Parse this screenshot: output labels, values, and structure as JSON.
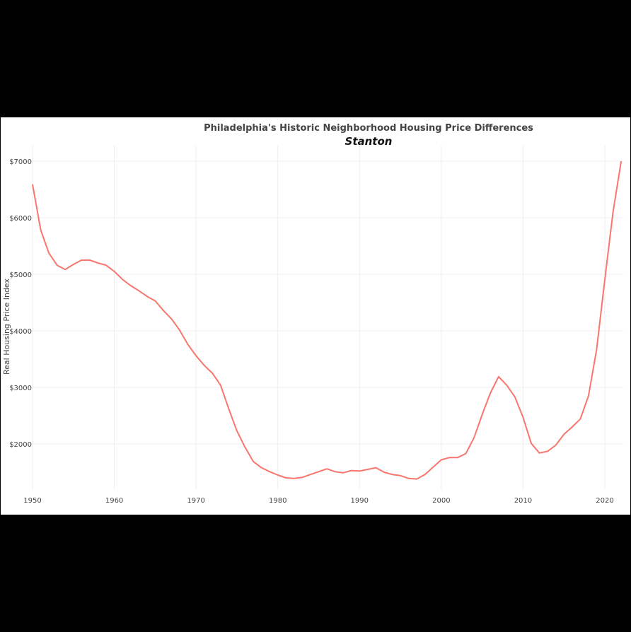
{
  "chart_data": {
    "type": "line",
    "title": "Philadelphia's Historic Neighborhood Housing Price Differences",
    "subtitle": "Stanton",
    "xlabel": "",
    "ylabel": "Real Housing Price Index",
    "x_ticks": [
      1950,
      1960,
      1970,
      1980,
      1990,
      2000,
      2010,
      2020
    ],
    "y_ticks": [
      2000,
      3000,
      4000,
      5000,
      6000,
      7000
    ],
    "y_tick_labels": [
      "$2000",
      "$3000",
      "$4000",
      "$5000",
      "$6000",
      "$7000"
    ],
    "xlim": [
      1950,
      2022
    ],
    "ylim": [
      1100,
      7300
    ],
    "grid": true,
    "legend": null,
    "line_color": "#f8766d",
    "series": [
      {
        "name": "Stanton",
        "x": [
          1950,
          1951,
          1952,
          1953,
          1954,
          1955,
          1956,
          1957,
          1958,
          1959,
          1960,
          1961,
          1962,
          1963,
          1964,
          1965,
          1966,
          1967,
          1968,
          1969,
          1970,
          1971,
          1972,
          1973,
          1974,
          1975,
          1976,
          1977,
          1978,
          1979,
          1980,
          1981,
          1982,
          1983,
          1984,
          1985,
          1986,
          1987,
          1988,
          1989,
          1990,
          1991,
          1992,
          1993,
          1994,
          1995,
          1996,
          1997,
          1998,
          1999,
          2000,
          2001,
          2002,
          2003,
          2004,
          2005,
          2006,
          2007,
          2008,
          2009,
          2010,
          2011,
          2012,
          2013,
          2014,
          2015,
          2016,
          2017,
          2018,
          2019,
          2020,
          2021,
          2022
        ],
        "values": [
          6590,
          5780,
          5375,
          5160,
          5085,
          5175,
          5250,
          5250,
          5200,
          5160,
          5050,
          4910,
          4800,
          4710,
          4610,
          4530,
          4360,
          4210,
          4010,
          3760,
          3560,
          3390,
          3250,
          3040,
          2620,
          2230,
          1940,
          1690,
          1580,
          1510,
          1450,
          1400,
          1390,
          1410,
          1460,
          1510,
          1560,
          1510,
          1490,
          1530,
          1520,
          1550,
          1580,
          1500,
          1460,
          1440,
          1390,
          1380,
          1460,
          1590,
          1720,
          1760,
          1760,
          1830,
          2110,
          2520,
          2900,
          3190,
          3040,
          2830,
          2470,
          2010,
          1840,
          1870,
          1980,
          2170,
          2300,
          2440,
          2850,
          3670,
          4910,
          6100,
          7000
        ]
      }
    ]
  }
}
